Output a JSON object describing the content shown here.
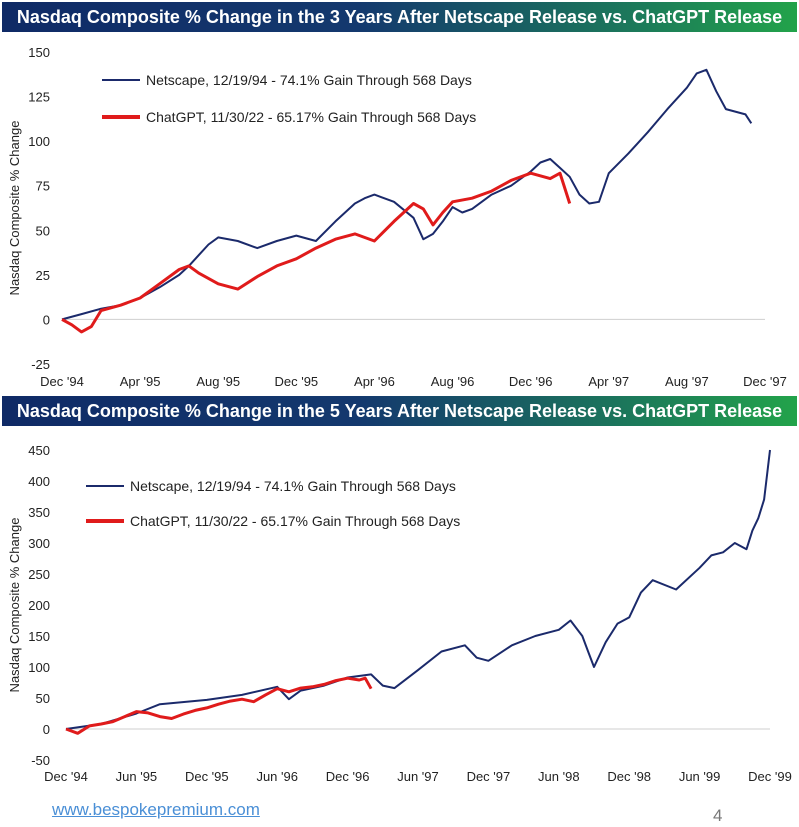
{
  "charts": [
    {
      "banner": "Nasdaq Composite % Change in the 3 Years After Netscape Release vs. ChatGPT Release"
    },
    {
      "banner": "Nasdaq Composite % Change in the 5 Years After Netscape Release vs. ChatGPT Release"
    }
  ],
  "footer": {
    "link": "www.bespokepremium.com",
    "page": "4"
  },
  "colors": {
    "netscape": "#1b2a6b",
    "chatgpt": "#e01b1b",
    "banner_start": "#0f2a66",
    "banner_end": "#22a34a"
  },
  "chart_data": [
    {
      "type": "line",
      "title": "Nasdaq Composite % Change in the 3 Years After Netscape Release vs. ChatGPT Release",
      "xlabel": "",
      "ylabel": "Nasdaq Composite % Change",
      "x_unit": "months since Dec '94",
      "xlim": [
        0,
        36
      ],
      "ylim": [
        -25,
        150
      ],
      "yticks": [
        -25,
        0,
        25,
        50,
        75,
        100,
        125,
        150
      ],
      "xticks": [
        0,
        4,
        8,
        12,
        16,
        20,
        24,
        28,
        32,
        36
      ],
      "xtick_labels": [
        "Dec '94",
        "Apr '95",
        "Aug '95",
        "Dec '95",
        "Apr '96",
        "Aug '96",
        "Dec '96",
        "Apr '97",
        "Aug '97",
        "Dec '97"
      ],
      "legend_position": "top-left",
      "series": [
        {
          "name": "Netscape, 12/19/94 - 74.1% Gain Through 568 Days",
          "color": "#1b2a6b",
          "x": [
            0,
            1,
            2,
            3,
            4,
            5,
            6,
            6.5,
            7,
            7.5,
            8,
            9,
            10,
            11,
            12,
            13,
            14,
            15,
            15.5,
            16,
            17,
            18,
            18.5,
            19,
            19.5,
            20,
            20.5,
            21,
            22,
            23,
            24,
            24.5,
            25,
            25.5,
            26,
            26.5,
            27,
            27.5,
            28,
            29,
            30,
            31,
            32,
            32.5,
            33,
            33.5,
            34,
            35,
            35.3
          ],
          "values": [
            0,
            3,
            6,
            8,
            12,
            18,
            25,
            30,
            36,
            42,
            46,
            44,
            40,
            44,
            47,
            44,
            55,
            65,
            68,
            70,
            66,
            57,
            45,
            48,
            55,
            63,
            60,
            62,
            70,
            75,
            83,
            88,
            90,
            85,
            80,
            70,
            65,
            66,
            82,
            93,
            105,
            118,
            130,
            138,
            140,
            128,
            118,
            115,
            110
          ]
        },
        {
          "name": "ChatGPT, 11/30/22 - 65.17% Gain Through 568 Days",
          "color": "#e01b1b",
          "x": [
            0,
            0.5,
            1,
            1.5,
            2,
            3,
            4,
            5,
            6,
            6.5,
            7,
            8,
            9,
            10,
            11,
            12,
            13,
            14,
            15,
            16,
            17,
            18,
            18.5,
            19,
            19.5,
            20,
            21,
            22,
            23,
            24,
            25,
            25.5,
            26
          ],
          "values": [
            0,
            -3,
            -7,
            -4,
            5,
            8,
            12,
            20,
            28,
            30,
            26,
            20,
            17,
            24,
            30,
            34,
            40,
            45,
            48,
            44,
            55,
            65,
            62,
            53,
            60,
            66,
            68,
            72,
            78,
            82,
            79,
            82,
            65
          ]
        }
      ]
    },
    {
      "type": "line",
      "title": "Nasdaq Composite % Change in the 5 Years After Netscape Release vs. ChatGPT Release",
      "xlabel": "",
      "ylabel": "Nasdaq Composite % Change",
      "x_unit": "months since Dec '94",
      "xlim": [
        0,
        60
      ],
      "ylim": [
        -50,
        450
      ],
      "yticks": [
        -50,
        0,
        50,
        100,
        150,
        200,
        250,
        300,
        350,
        400,
        450
      ],
      "xticks": [
        0,
        6,
        12,
        18,
        24,
        30,
        36,
        42,
        48,
        54,
        60
      ],
      "xtick_labels": [
        "Dec '94",
        "Jun '95",
        "Dec '95",
        "Jun '96",
        "Dec '96",
        "Jun '97",
        "Dec '97",
        "Jun '98",
        "Dec '98",
        "Jun '99",
        "Dec '99"
      ],
      "legend_position": "top-left",
      "series": [
        {
          "name": "Netscape, 12/19/94 - 74.1% Gain Through 568 Days",
          "color": "#1b2a6b",
          "x": [
            0,
            3,
            6,
            8,
            12,
            15,
            18,
            19,
            20,
            22,
            24,
            26,
            27,
            28,
            30,
            32,
            34,
            35,
            36,
            38,
            40,
            42,
            43,
            44,
            44.5,
            45,
            46,
            47,
            48,
            49,
            50,
            52,
            54,
            55,
            56,
            57,
            58,
            58.5,
            59,
            59.5,
            60
          ],
          "values": [
            0,
            8,
            25,
            40,
            47,
            55,
            68,
            48,
            62,
            70,
            83,
            88,
            70,
            66,
            95,
            125,
            135,
            115,
            110,
            135,
            150,
            160,
            175,
            150,
            125,
            100,
            140,
            170,
            180,
            220,
            240,
            225,
            260,
            280,
            285,
            300,
            290,
            320,
            340,
            370,
            450
          ]
        },
        {
          "name": "ChatGPT, 11/30/22 - 65.17% Gain Through 568 Days",
          "color": "#e01b1b",
          "x": [
            0,
            1,
            2,
            3,
            4,
            5,
            6,
            7,
            8,
            9,
            10,
            11,
            12,
            13,
            14,
            15,
            16,
            17,
            18,
            19,
            20,
            21,
            22,
            23,
            24,
            25,
            25.5,
            26
          ],
          "values": [
            0,
            -7,
            5,
            8,
            12,
            20,
            28,
            26,
            20,
            17,
            24,
            30,
            34,
            40,
            45,
            48,
            44,
            55,
            65,
            60,
            66,
            68,
            72,
            78,
            82,
            79,
            82,
            65
          ]
        }
      ]
    }
  ]
}
